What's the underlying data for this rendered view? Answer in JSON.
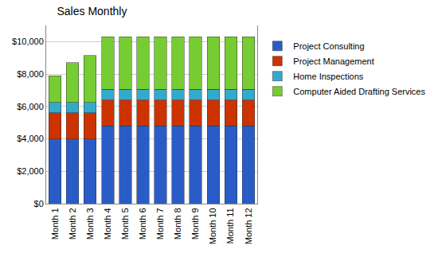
{
  "chart_data": {
    "type": "bar",
    "title": "Sales Monthly",
    "stacked": true,
    "legend": "right",
    "grid": true,
    "categories": [
      "Month 1",
      "Month 2",
      "Month 3",
      "Month 4",
      "Month 5",
      "Month 6",
      "Month 7",
      "Month 8",
      "Month 9",
      "Month 10",
      "Month 11",
      "Month 12"
    ],
    "series": [
      {
        "name": "Project Consulting",
        "color": "#2a5cc8",
        "values": [
          4000,
          4000,
          4000,
          4800,
          4800,
          4800,
          4800,
          4800,
          4800,
          4800,
          4800,
          4800
        ]
      },
      {
        "name": "Project Management",
        "color": "#cc3300",
        "values": [
          1600,
          1600,
          1600,
          1600,
          1600,
          1600,
          1600,
          1600,
          1600,
          1600,
          1600,
          1600
        ]
      },
      {
        "name": "Home Inspections",
        "color": "#33aacc",
        "values": [
          650,
          650,
          650,
          650,
          650,
          650,
          650,
          650,
          650,
          650,
          650,
          650
        ]
      },
      {
        "name": "Computer Aided Drafting Services",
        "color": "#77cc33",
        "values": [
          1650,
          2450,
          2900,
          3250,
          3250,
          3250,
          3250,
          3250,
          3250,
          3250,
          3250,
          3250
        ]
      }
    ],
    "ylim": [
      0,
      11000
    ],
    "yticks": [
      {
        "value": 0,
        "label": "$0"
      },
      {
        "value": 2000,
        "label": "$2,000"
      },
      {
        "value": 4000,
        "label": "$4,000"
      },
      {
        "value": 6000,
        "label": "$6,000"
      },
      {
        "value": 8000,
        "label": "$8,000"
      },
      {
        "value": 10000,
        "label": "$10,000"
      }
    ]
  }
}
